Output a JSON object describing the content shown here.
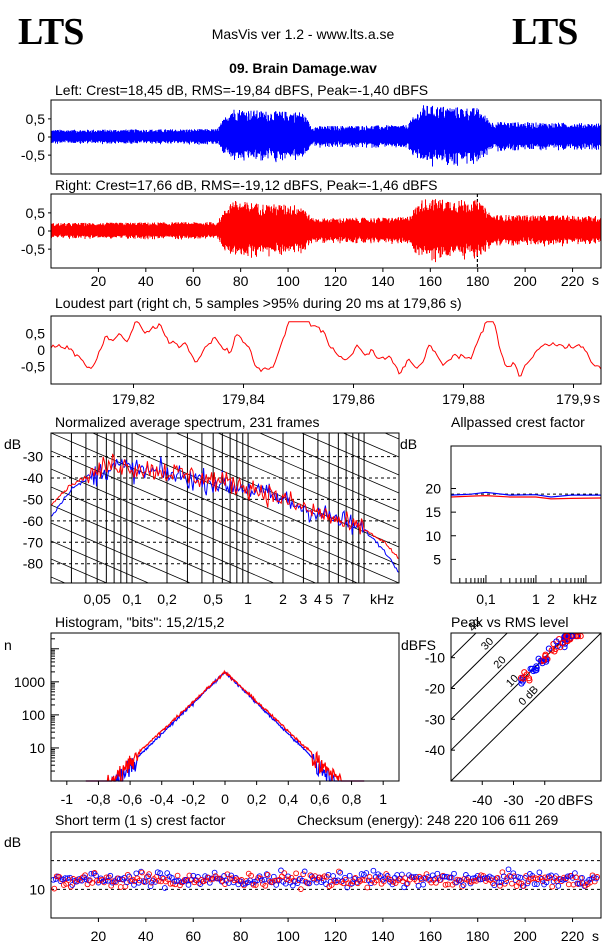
{
  "header": {
    "logo_left": "LTS",
    "logo_right": "LTS",
    "app_title": "MasVis ver 1.2 - www.lts.a.se",
    "file_title": "09. Brain Damage.wav"
  },
  "colors": {
    "left": "#0000ff",
    "right": "#ff0000",
    "grid": "#000000"
  },
  "chart_data": [
    {
      "id": "left-waveform",
      "type": "area",
      "title": "Left: Crest=18,45 dB, RMS=-19,84 dBFS, Peak=-1,40 dBFS",
      "yticks": [
        "0,5",
        "0",
        "-0,5"
      ],
      "ylim": [
        -1,
        1
      ],
      "envelope": [
        {
          "t": 0,
          "amp": 0.2
        },
        {
          "t": 70,
          "amp": 0.22
        },
        {
          "t": 76,
          "amp": 0.8
        },
        {
          "t": 90,
          "amp": 0.72
        },
        {
          "t": 106,
          "amp": 0.7
        },
        {
          "t": 110,
          "amp": 0.3
        },
        {
          "t": 150,
          "amp": 0.33
        },
        {
          "t": 157,
          "amp": 0.88
        },
        {
          "t": 180,
          "amp": 0.8
        },
        {
          "t": 186,
          "amp": 0.42
        },
        {
          "t": 230,
          "amp": 0.38
        }
      ]
    },
    {
      "id": "right-waveform",
      "type": "area",
      "title": "Right: Crest=17,66 dB, RMS=-19,12 dBFS, Peak=-1,46 dBFS",
      "yticks": [
        "0,5",
        "0",
        "-0,5"
      ],
      "ylim": [
        -1,
        1
      ],
      "xticks": [
        "20",
        "40",
        "60",
        "80",
        "100",
        "120",
        "140",
        "160",
        "180",
        "200",
        "220"
      ],
      "xunit": "s",
      "xlim": [
        0,
        232
      ],
      "marker_time": 179.86,
      "envelope": [
        {
          "t": 0,
          "amp": 0.22
        },
        {
          "t": 70,
          "amp": 0.25
        },
        {
          "t": 76,
          "amp": 0.85
        },
        {
          "t": 90,
          "amp": 0.75
        },
        {
          "t": 106,
          "amp": 0.72
        },
        {
          "t": 110,
          "amp": 0.35
        },
        {
          "t": 150,
          "amp": 0.38
        },
        {
          "t": 157,
          "amp": 0.9
        },
        {
          "t": 180,
          "amp": 0.85
        },
        {
          "t": 186,
          "amp": 0.45
        },
        {
          "t": 230,
          "amp": 0.42
        }
      ]
    },
    {
      "id": "loudest-part",
      "type": "line",
      "title": "Loudest part (right ch, 5 samples >95% during 20 ms at 179,86 s)",
      "yticks": [
        "0,5",
        "0",
        "-0,5"
      ],
      "ylim": [
        -1,
        1
      ],
      "xticks": [
        "179,82",
        "179,84",
        "179,86",
        "179,88",
        "179,9"
      ],
      "xunit": "s",
      "xlim": [
        179.805,
        179.905
      ]
    },
    {
      "id": "spectrum",
      "type": "line",
      "title": "Normalized average spectrum, 231 frames",
      "ylabel": "dB",
      "yticks": [
        "-30",
        "-40",
        "-50",
        "-60",
        "-70",
        "-80"
      ],
      "ylim": [
        -89,
        -19
      ],
      "xticks": [
        "0,05",
        "0,1",
        "0,2",
        "0,5",
        "1",
        "2",
        "3",
        "4",
        "5",
        "7"
      ],
      "xunit": "kHz",
      "xlim_khz": [
        0.02,
        20
      ],
      "series": [
        {
          "color": "left",
          "points": [
            [
              0.02,
              -58
            ],
            [
              0.03,
              -45
            ],
            [
              0.05,
              -38
            ],
            [
              0.07,
              -34
            ],
            [
              0.1,
              -36
            ],
            [
              0.2,
              -38
            ],
            [
              0.5,
              -42
            ],
            [
              1,
              -45
            ],
            [
              2,
              -50
            ],
            [
              3,
              -54
            ],
            [
              5,
              -58
            ],
            [
              7,
              -61
            ],
            [
              10,
              -64
            ],
            [
              15,
              -74
            ],
            [
              20,
              -84
            ]
          ]
        },
        {
          "color": "right",
          "points": [
            [
              0.02,
              -52
            ],
            [
              0.03,
              -43
            ],
            [
              0.05,
              -37
            ],
            [
              0.07,
              -33
            ],
            [
              0.1,
              -35
            ],
            [
              0.2,
              -37
            ],
            [
              0.5,
              -41
            ],
            [
              1,
              -44
            ],
            [
              2,
              -50
            ],
            [
              3,
              -54
            ],
            [
              5,
              -58
            ],
            [
              7,
              -62
            ],
            [
              10,
              -64
            ],
            [
              15,
              -70
            ],
            [
              20,
              -78
            ]
          ]
        }
      ]
    },
    {
      "id": "allpassed-crest",
      "type": "line",
      "title": "Allpassed crest factor",
      "ylabel": "dB",
      "yticks": [
        "20",
        "15",
        "10",
        "5"
      ],
      "ylim": [
        0,
        29
      ],
      "xticks": [
        "0,1",
        "1",
        "2"
      ],
      "xunit": "kHz",
      "xlim_khz": [
        0.02,
        20
      ],
      "series": [
        {
          "color": "left",
          "points": [
            [
              0.02,
              18.6
            ],
            [
              0.05,
              18.8
            ],
            [
              0.1,
              19.2
            ],
            [
              0.3,
              18.6
            ],
            [
              1,
              18.7
            ],
            [
              2,
              18.2
            ],
            [
              5,
              18.6
            ],
            [
              20,
              18.6
            ]
          ]
        },
        {
          "color": "right",
          "points": [
            [
              0.02,
              18.2
            ],
            [
              0.05,
              18.4
            ],
            [
              0.1,
              18.5
            ],
            [
              0.3,
              18.2
            ],
            [
              1,
              18.2
            ],
            [
              2,
              17.8
            ],
            [
              5,
              17.9
            ],
            [
              20,
              18.0
            ]
          ]
        }
      ]
    },
    {
      "id": "histogram",
      "type": "line",
      "title": "Histogram, \"bits\": 15,2/15,2",
      "ylabel": "n",
      "yticks": [
        "1000",
        "100",
        "10"
      ],
      "yscale": "log",
      "ylim": [
        1,
        30000
      ],
      "xticks": [
        "-1",
        "-0,8",
        "-0,6",
        "-0,4",
        "-0,2",
        "0",
        "0,2",
        "0,4",
        "0,6",
        "0,8",
        "1"
      ],
      "xlim": [
        -1.1,
        1.1
      ]
    },
    {
      "id": "peak-vs-rms",
      "type": "scatter",
      "title": "Peak vs RMS level",
      "ylabel": "dBFS",
      "xlabel": "dBFS",
      "yticks": [
        "-10",
        "-20",
        "-30",
        "-40"
      ],
      "xticks": [
        "-40",
        "-30",
        "-20"
      ],
      "xlim": [
        -50,
        -2
      ],
      "ylim": [
        -50,
        -2
      ],
      "diagonal_labels": [
        "40",
        "30",
        "20",
        "10",
        "0 dB"
      ]
    },
    {
      "id": "short-term-crest",
      "type": "scatter",
      "title": "Short term (1 s) crest factor",
      "checksum": "Checksum (energy):   248 220 106 611 269",
      "ylabel": "dB",
      "yticks": [
        "10"
      ],
      "ylim": [
        0,
        30
      ],
      "xticks": [
        "20",
        "40",
        "60",
        "80",
        "100",
        "120",
        "140",
        "160",
        "180",
        "200",
        "220"
      ],
      "xunit": "s",
      "xlim": [
        0,
        232
      ]
    }
  ]
}
